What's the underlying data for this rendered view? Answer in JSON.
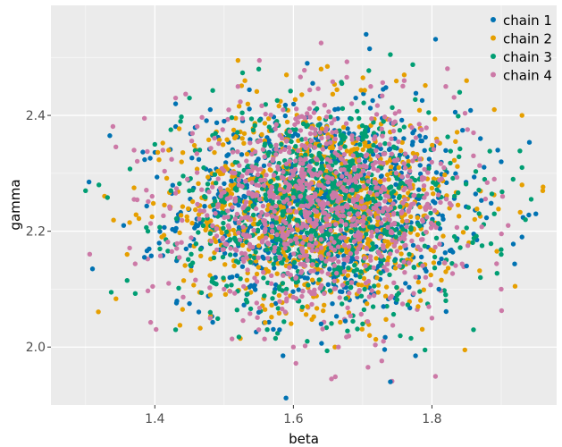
{
  "chart_data": {
    "type": "scatter",
    "xlabel": "beta",
    "ylabel": "gamma",
    "xlim": [
      1.25,
      1.98
    ],
    "ylim": [
      1.9,
      2.59
    ],
    "x_ticks": [
      1.4,
      1.6,
      1.8
    ],
    "x_tick_labels": [
      "1.4",
      "1.6",
      "1.8"
    ],
    "y_ticks": [
      2.0,
      2.2,
      2.4
    ],
    "y_tick_labels": [
      "2.0",
      "2.2",
      "2.4"
    ],
    "grid": true,
    "legend_position": "top-right",
    "background": "#ebebeb",
    "series": [
      {
        "name": "chain 1",
        "color": "#0072B2",
        "points": [
          [
            1.31,
            2.135
          ],
          [
            1.335,
            2.365
          ],
          [
            1.305,
            2.285
          ],
          [
            1.355,
            2.21
          ],
          [
            1.705,
            2.54
          ],
          [
            1.71,
            2.515
          ],
          [
            1.74,
            1.94
          ],
          [
            1.95,
            2.23
          ],
          [
            1.93,
            2.19
          ],
          [
            1.585,
            1.985
          ],
          [
            1.675,
            2.045
          ],
          [
            1.385,
            2.155
          ],
          [
            1.45,
            2.075
          ],
          [
            1.87,
            2.36
          ],
          [
            1.895,
            2.34
          ],
          [
            1.9,
            2.32
          ],
          [
            1.62,
            2.49
          ],
          [
            1.64,
            2.04
          ],
          [
            1.58,
            2.03
          ],
          [
            1.73,
            2.07
          ],
          [
            1.85,
            2.14
          ],
          [
            1.48,
            2.41
          ],
          [
            1.43,
            2.42
          ],
          [
            1.55,
            2.06
          ],
          [
            1.81,
            2.1
          ],
          [
            1.5,
            2.39
          ],
          [
            1.69,
            2.43
          ]
        ]
      },
      {
        "name": "chain 2",
        "color": "#E69F00",
        "points": [
          [
            1.52,
            2.495
          ],
          [
            1.53,
            2.46
          ],
          [
            1.37,
            2.275
          ],
          [
            1.36,
            2.16
          ],
          [
            1.41,
            2.19
          ],
          [
            1.44,
            2.065
          ],
          [
            1.92,
            2.105
          ],
          [
            1.93,
            2.4
          ],
          [
            1.96,
            2.27
          ],
          [
            1.89,
            2.41
          ],
          [
            1.85,
            2.46
          ],
          [
            1.76,
            2.47
          ],
          [
            1.66,
            2.0
          ],
          [
            1.71,
            2.02
          ],
          [
            1.62,
            2.07
          ],
          [
            1.82,
            2.13
          ],
          [
            1.78,
            2.07
          ],
          [
            1.48,
            2.09
          ],
          [
            1.59,
            2.47
          ],
          [
            1.64,
            2.48
          ],
          [
            1.93,
            2.28
          ],
          [
            1.42,
            2.34
          ]
        ]
      },
      {
        "name": "chain 3",
        "color": "#009E73",
        "points": [
          [
            1.3,
            2.27
          ],
          [
            1.36,
            2.115
          ],
          [
            1.43,
            2.03
          ],
          [
            1.67,
            2.455
          ],
          [
            1.74,
            2.505
          ],
          [
            1.87,
            2.12
          ],
          [
            1.89,
            2.23
          ],
          [
            1.93,
            2.31
          ],
          [
            1.935,
            2.22
          ],
          [
            1.79,
            1.995
          ],
          [
            1.7,
            2.04
          ],
          [
            1.62,
            2.01
          ],
          [
            1.48,
            2.06
          ],
          [
            1.39,
            2.2
          ],
          [
            1.4,
            2.35
          ],
          [
            1.45,
            2.43
          ],
          [
            1.82,
            2.08
          ],
          [
            1.86,
            2.03
          ],
          [
            1.55,
            2.48
          ],
          [
            1.84,
            2.44
          ],
          [
            1.9,
            2.16
          ],
          [
            1.58,
            2.1
          ]
        ]
      },
      {
        "name": "chain 4",
        "color": "#CC79A7",
        "points": [
          [
            1.385,
            2.395
          ],
          [
            1.37,
            2.255
          ],
          [
            1.39,
            2.097
          ],
          [
            1.42,
            2.11
          ],
          [
            1.64,
            2.525
          ],
          [
            1.655,
            1.945
          ],
          [
            1.665,
            2.0
          ],
          [
            1.89,
            2.29
          ],
          [
            1.9,
            2.1
          ],
          [
            1.91,
            2.21
          ],
          [
            1.48,
            2.05
          ],
          [
            1.55,
            2.03
          ],
          [
            1.82,
            2.45
          ],
          [
            1.86,
            2.37
          ],
          [
            1.37,
            2.34
          ],
          [
            1.43,
            2.43
          ],
          [
            1.52,
            2.45
          ],
          [
            1.6,
            2.0
          ],
          [
            1.73,
            2.01
          ],
          [
            1.8,
            2.05
          ],
          [
            1.76,
            2.46
          ],
          [
            1.5,
            2.1
          ]
        ]
      }
    ],
    "cloud": {
      "center": [
        1.64,
        2.24
      ],
      "sd": [
        0.1,
        0.085
      ],
      "points_per_chain": 900,
      "overlay_order": [
        "chain 1",
        "chain 2",
        "chain 3",
        "chain 4"
      ]
    }
  }
}
